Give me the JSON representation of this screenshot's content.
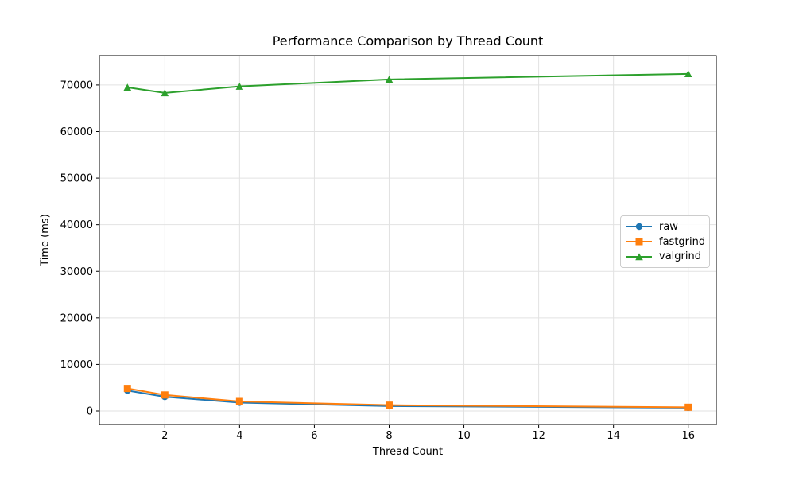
{
  "chart_data": {
    "type": "line",
    "title": "Performance Comparison by Thread Count",
    "xlabel": "Thread Count",
    "ylabel": "Time (ms)",
    "x": [
      1,
      2,
      4,
      8,
      16
    ],
    "series": [
      {
        "name": "raw",
        "color": "#1f77b4",
        "marker": "circle",
        "values": [
          4400,
          3050,
          1800,
          1050,
          700
        ]
      },
      {
        "name": "fastgrind",
        "color": "#ff7f0e",
        "marker": "square",
        "values": [
          4850,
          3450,
          2050,
          1250,
          800
        ]
      },
      {
        "name": "valgrind",
        "color": "#2ca02c",
        "marker": "triangle",
        "values": [
          69500,
          68300,
          69700,
          71200,
          72400
        ]
      }
    ],
    "xticks": [
      2,
      4,
      6,
      8,
      10,
      12,
      14,
      16
    ],
    "yticks": [
      0,
      10000,
      20000,
      30000,
      40000,
      50000,
      60000,
      70000
    ],
    "xlim": [
      0.25,
      16.75
    ],
    "ylim": [
      -2900,
      76300
    ],
    "grid": true,
    "legend": {
      "position": "center-right",
      "entries": [
        "raw",
        "fastgrind",
        "valgrind"
      ]
    }
  },
  "colors": {
    "grid": "#e2e2e2",
    "spine": "#000000",
    "background": "#ffffff",
    "raw": "#1f77b4",
    "fastgrind": "#ff7f0e",
    "valgrind": "#2ca02c"
  }
}
